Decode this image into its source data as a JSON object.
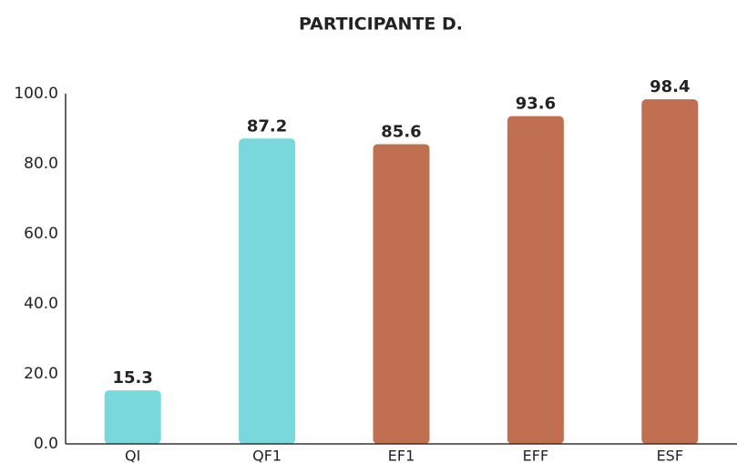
{
  "chart_data": {
    "type": "bar",
    "title": "PARTICIPANTE D.",
    "categories": [
      "QI",
      "QF1",
      "EF1",
      "EFF",
      "ESF"
    ],
    "values": [
      15.3,
      87.2,
      85.6,
      93.6,
      98.4
    ],
    "colors": [
      "#79d8dc",
      "#79d8dc",
      "#c07050",
      "#c07050",
      "#c07050"
    ],
    "ylim": [
      0,
      100
    ],
    "yticks": [
      {
        "value": 0,
        "label": "0.0"
      },
      {
        "value": 20,
        "label": "20.0"
      },
      {
        "value": 40,
        "label": "40.0"
      },
      {
        "value": 60,
        "label": "60.0"
      },
      {
        "value": 80,
        "label": "80.0"
      },
      {
        "value": 100,
        "label": "100.0"
      }
    ],
    "grid": false
  }
}
